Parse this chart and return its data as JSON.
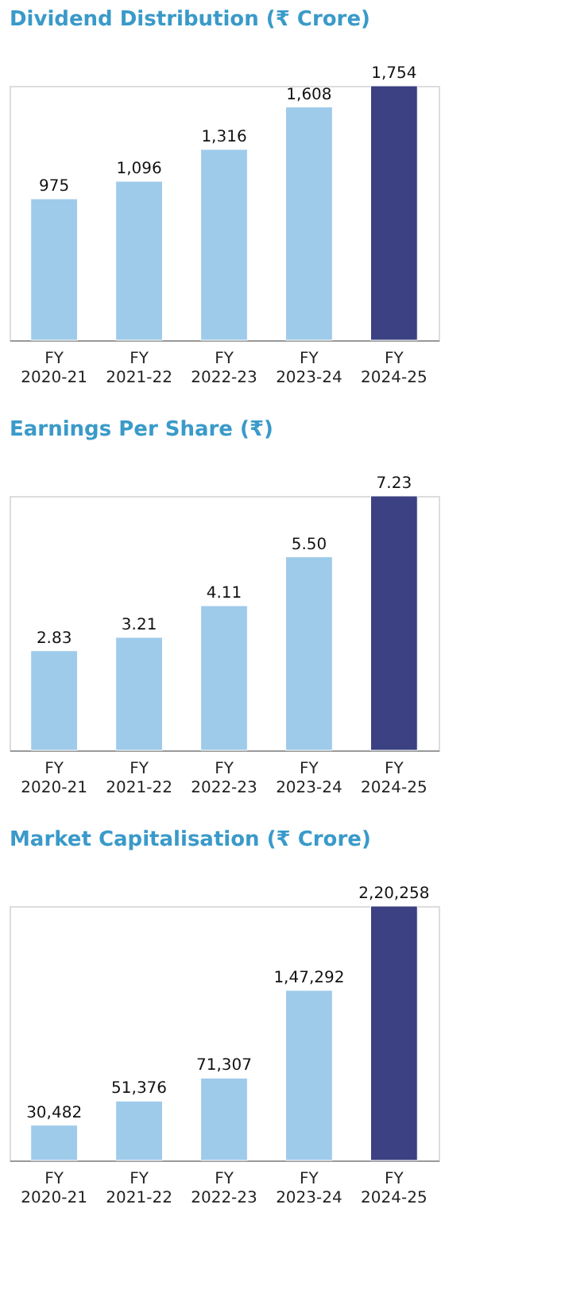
{
  "chart_data": [
    {
      "type": "bar",
      "title": "Dividend Distribution (₹ Crore)",
      "categories": [
        "FY 2020-21",
        "FY 2021-22",
        "FY 2022-23",
        "FY 2023-24",
        "FY 2024-25"
      ],
      "values": [
        975,
        1096,
        1316,
        1608,
        1754
      ],
      "value_labels": [
        "975",
        "1,096",
        "1,316",
        "1,608",
        "1,754"
      ],
      "colors": [
        "#9fcbeb",
        "#9fcbeb",
        "#9fcbeb",
        "#9fcbeb",
        "#3b4182"
      ],
      "grid": false
    },
    {
      "type": "bar",
      "title": "Earnings Per Share (₹)",
      "categories": [
        "FY 2020-21",
        "FY 2021-22",
        "FY 2022-23",
        "FY 2023-24",
        "FY 2024-25"
      ],
      "values": [
        2.83,
        3.21,
        4.11,
        5.5,
        7.23
      ],
      "value_labels": [
        "2.83",
        "3.21",
        "4.11",
        "5.50",
        "7.23"
      ],
      "colors": [
        "#9fcbeb",
        "#9fcbeb",
        "#9fcbeb",
        "#9fcbeb",
        "#3b4182"
      ],
      "grid": false
    },
    {
      "type": "bar",
      "title": "Market Capitalisation (₹ Crore)",
      "categories": [
        "FY 2020-21",
        "FY 2021-22",
        "FY 2022-23",
        "FY 2023-24",
        "FY 2024-25"
      ],
      "values": [
        30482,
        51376,
        71307,
        147292,
        220258
      ],
      "value_labels": [
        "30,482",
        "51,376",
        "71,307",
        "1,47,292",
        "2,20,258"
      ],
      "colors": [
        "#9fcbeb",
        "#9fcbeb",
        "#9fcbeb",
        "#9fcbeb",
        "#3b4182"
      ],
      "grid": false
    }
  ]
}
